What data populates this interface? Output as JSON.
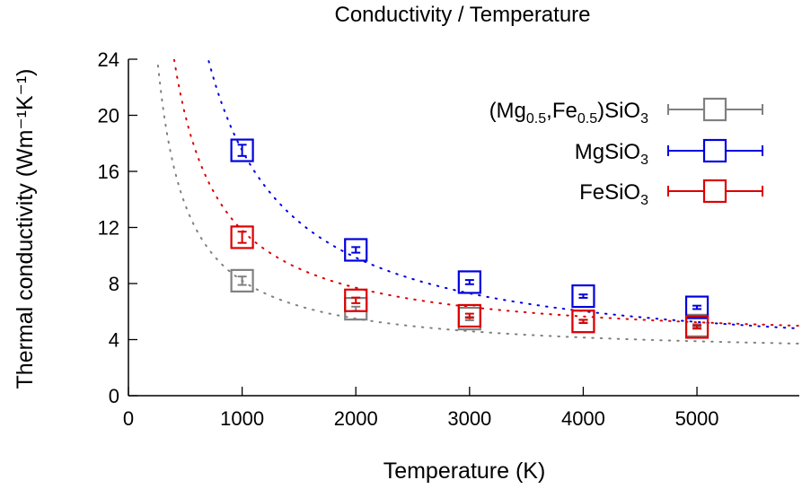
{
  "chart_data": {
    "type": "scatter",
    "title": "Conductivity / Temperature",
    "xlabel": "Temperature (K)",
    "ylabel": "Thermal conductivity (Wm⁻¹K⁻¹)",
    "xlim": [
      0,
      5900
    ],
    "ylim": [
      0,
      24
    ],
    "xticks": [
      "0",
      "1000",
      "2000",
      "3000",
      "4000",
      "5000"
    ],
    "xtick_values": [
      0,
      1000,
      2000,
      3000,
      4000,
      5000
    ],
    "yticks": [
      "0",
      "4",
      "8",
      "12",
      "16",
      "20",
      "24"
    ],
    "ytick_values": [
      0,
      4,
      8,
      12,
      16,
      20,
      24
    ],
    "grid": false,
    "legend_position": "top-right",
    "marker": "open-square",
    "fit_curves": "dotted",
    "series": [
      {
        "name": "(Mg0.5,Fe0.5)SiO3",
        "legend_parts": [
          [
            "(Mg",
            ""
          ],
          [
            "0.5",
            "sub"
          ],
          [
            ",Fe",
            ""
          ],
          [
            "0.5",
            "sub"
          ],
          [
            ")SiO",
            ""
          ],
          [
            "3",
            "sub"
          ]
        ],
        "color": "#808080",
        "x": [
          1000,
          2000,
          3000,
          4000,
          5000
        ],
        "y": [
          8.2,
          6.2,
          5.5,
          5.3,
          5.0
        ],
        "err": [
          0.3,
          0.15,
          0.12,
          0.1,
          0.1
        ],
        "fit": {
          "a": 2.8,
          "b": 5400
        }
      },
      {
        "name": "MgSiO3",
        "legend_parts": [
          [
            "MgSiO",
            ""
          ],
          [
            "3",
            "sub"
          ]
        ],
        "color": "#0000dd",
        "x": [
          1000,
          2000,
          3000,
          4000,
          5000
        ],
        "y": [
          17.5,
          10.4,
          8.1,
          7.1,
          6.3
        ],
        "err": [
          0.4,
          0.2,
          0.15,
          0.12,
          0.12
        ],
        "fit": {
          "a": 2.2,
          "b": 15300
        }
      },
      {
        "name": "FeSiO3",
        "legend_parts": [
          [
            "FeSiO",
            ""
          ],
          [
            "3",
            "sub"
          ]
        ],
        "color": "#dd0000",
        "x": [
          1000,
          2000,
          3000,
          4000,
          5000
        ],
        "y": [
          11.3,
          6.8,
          5.7,
          5.3,
          4.9
        ],
        "err": [
          0.4,
          0.2,
          0.15,
          0.12,
          0.12
        ],
        "fit": {
          "a": 3.6,
          "b": 8200
        }
      }
    ]
  }
}
